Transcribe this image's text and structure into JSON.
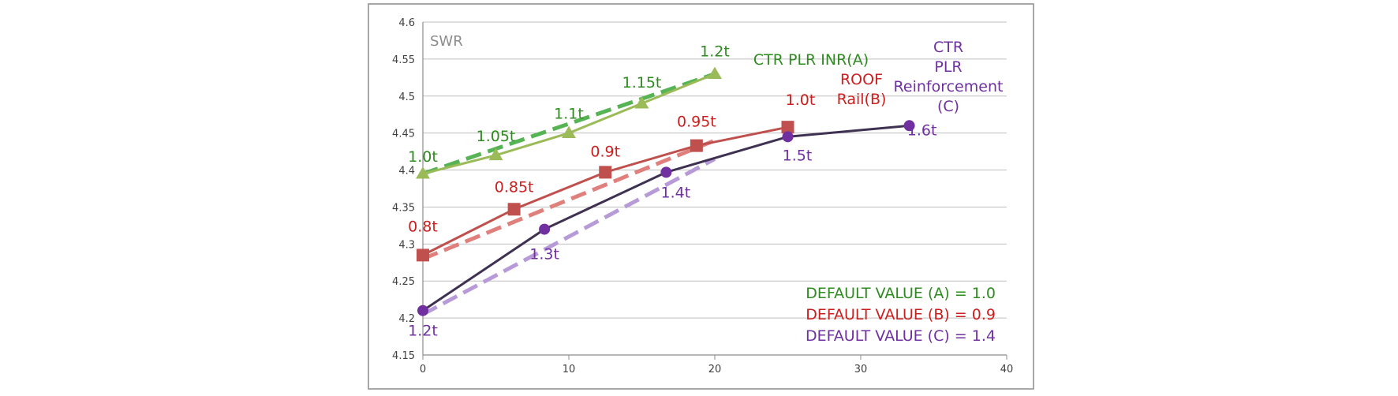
{
  "colors": {
    "A_line": "#9bbb59",
    "A_trend": "#56b454",
    "A_text": "#2e8b1f",
    "B_line": "#c0504d",
    "B_trend": "#e0807d",
    "B_text": "#cc1f1f",
    "C_line": "#3f3151",
    "C_trend": "#b79bd8",
    "C_marker": "#7030a0",
    "C_text": "#7030a0"
  },
  "chart_data": {
    "type": "line",
    "title": "SWR",
    "xlabel": "",
    "ylabel": "",
    "xlim": [
      0,
      40
    ],
    "ylim": [
      4.15,
      4.6
    ],
    "x_ticks": [
      "0",
      "10",
      "20",
      "30",
      "40"
    ],
    "y_ticks": [
      "4.15",
      "4.2",
      "4.25",
      "4.3",
      "4.35",
      "4.4",
      "4.45",
      "4.5",
      "4.55",
      "4.6"
    ],
    "grid": "horizontal",
    "series": [
      {
        "key": "A",
        "name_lines": [
          "CTR PLR INR(A)"
        ],
        "marker": "triangle",
        "x": [
          0,
          5,
          10,
          15,
          20
        ],
        "y": [
          4.395,
          4.42,
          4.45,
          4.49,
          4.53
        ],
        "point_labels": [
          "1.0t",
          "1.05t",
          "1.1t",
          "1.15t",
          "1.2t"
        ],
        "trend": {
          "x": [
            0,
            20
          ],
          "y": [
            4.395,
            4.53
          ]
        }
      },
      {
        "key": "B",
        "name_lines": [
          "ROOF",
          "Rail(B)"
        ],
        "marker": "square",
        "x": [
          0,
          6.25,
          12.5,
          18.75,
          25
        ],
        "y": [
          4.285,
          4.347,
          4.397,
          4.433,
          4.458
        ],
        "point_labels": [
          "0.8t",
          "0.85t",
          "0.9t",
          "0.95t",
          "1.0t"
        ],
        "trend": {
          "x": [
            0,
            20
          ],
          "y": [
            4.28,
            4.44
          ]
        }
      },
      {
        "key": "C",
        "name_lines": [
          "CTR",
          "PLR",
          "Reinforcement",
          "(C)"
        ],
        "marker": "circle",
        "x": [
          0,
          8.33,
          16.67,
          25,
          33.33
        ],
        "y": [
          4.21,
          4.32,
          4.397,
          4.445,
          4.46
        ],
        "point_labels": [
          "1.2t",
          "1.3t",
          "1.4t",
          "1.5t",
          "1.6t"
        ],
        "trend": {
          "x": [
            0,
            20
          ],
          "y": [
            4.205,
            4.415
          ]
        }
      }
    ],
    "annotations": [
      "DEFAULT VALUE (A) = 1.0",
      "DEFAULT VALUE (B) = 0.9",
      "DEFAULT VALUE (C) = 1.4"
    ]
  }
}
